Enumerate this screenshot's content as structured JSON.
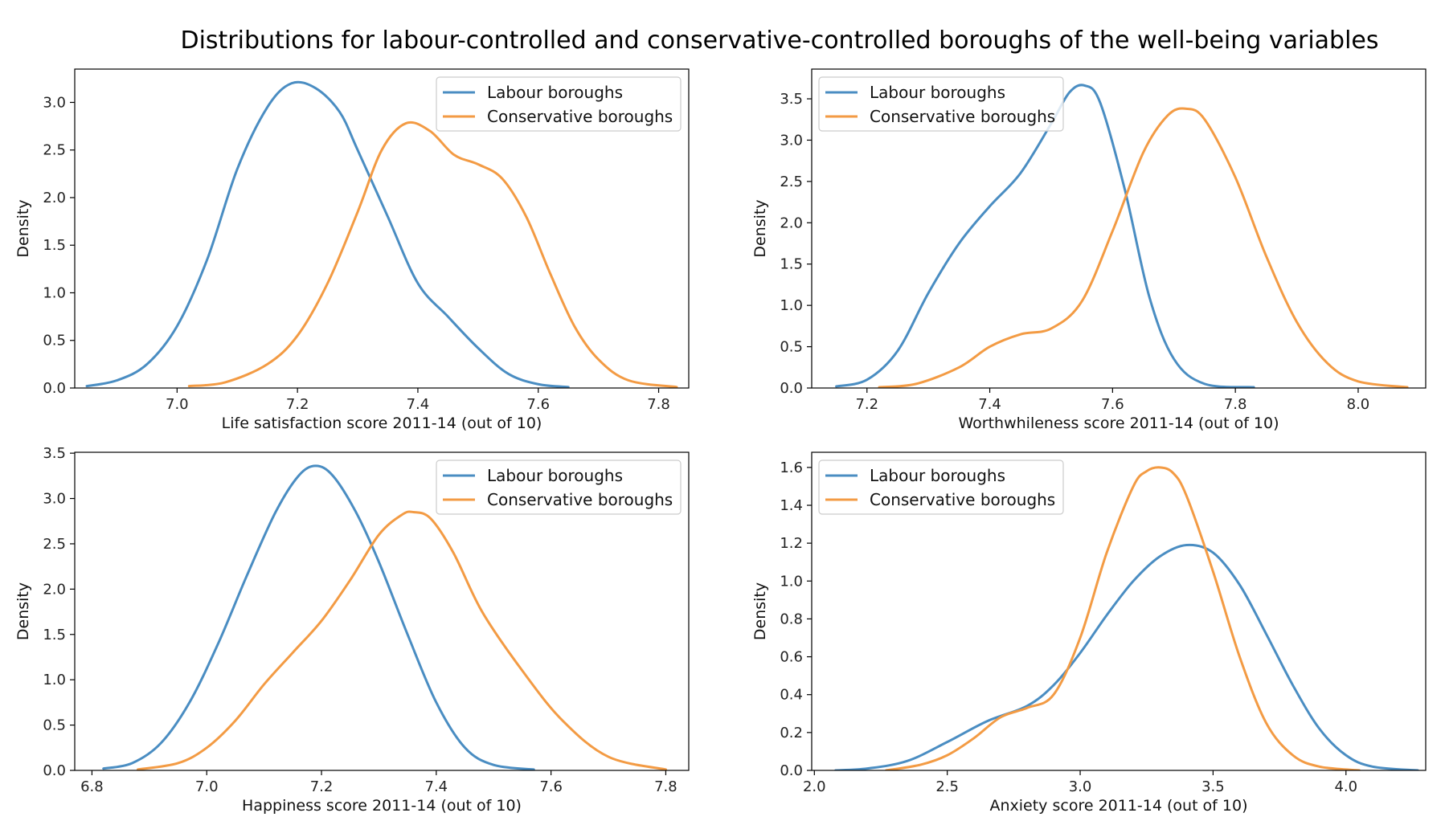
{
  "figure": {
    "title": "Distributions for labour-controlled and conservative-controlled boroughs of the well-being variables"
  },
  "colors": {
    "Labour boroughs": "#4a8dc2",
    "Conservative boroughs": "#f39b44"
  },
  "chart_data": [
    {
      "type": "line",
      "xlabel": "Life satisfaction score 2011-14 (out of 10)",
      "ylabel": "Density",
      "xlim": [
        6.83,
        7.85
      ],
      "ylim": [
        0,
        3.35
      ],
      "xticks": [
        7.0,
        7.2,
        7.4,
        7.6,
        7.8
      ],
      "xtick_labels": [
        "7.0",
        "7.2",
        "7.4",
        "7.6",
        "7.8"
      ],
      "yticks": [
        0,
        0.5,
        1.0,
        1.5,
        2.0,
        2.5,
        3.0
      ],
      "ytick_labels": [
        "0.0",
        "0.5",
        "1.0",
        "1.5",
        "2.0",
        "2.5",
        "3.0"
      ],
      "legend": "top-right",
      "grid": false,
      "series": [
        {
          "name": "Labour boroughs",
          "x": [
            6.85,
            6.9,
            6.95,
            7.0,
            7.05,
            7.1,
            7.15,
            7.19,
            7.23,
            7.27,
            7.3,
            7.35,
            7.4,
            7.45,
            7.5,
            7.55,
            7.6,
            7.65
          ],
          "y": [
            0.02,
            0.08,
            0.25,
            0.65,
            1.35,
            2.3,
            2.95,
            3.2,
            3.15,
            2.9,
            2.5,
            1.8,
            1.1,
            0.75,
            0.42,
            0.15,
            0.04,
            0.01
          ]
        },
        {
          "name": "Conservative boroughs",
          "x": [
            7.02,
            7.08,
            7.15,
            7.2,
            7.25,
            7.3,
            7.34,
            7.38,
            7.42,
            7.46,
            7.5,
            7.54,
            7.58,
            7.62,
            7.66,
            7.7,
            7.75,
            7.83
          ],
          "y": [
            0.02,
            0.06,
            0.25,
            0.55,
            1.1,
            1.85,
            2.5,
            2.78,
            2.7,
            2.45,
            2.35,
            2.2,
            1.8,
            1.2,
            0.65,
            0.3,
            0.08,
            0.01
          ]
        }
      ]
    },
    {
      "type": "line",
      "xlabel": "Worthwhileness score 2011-14 (out of 10)",
      "ylabel": "Density",
      "xlim": [
        7.11,
        8.11
      ],
      "ylim": [
        0,
        3.86
      ],
      "xticks": [
        7.2,
        7.4,
        7.6,
        7.8,
        8.0
      ],
      "xtick_labels": [
        "7.2",
        "7.4",
        "7.6",
        "7.8",
        "8.0"
      ],
      "yticks": [
        0,
        0.5,
        1.0,
        1.5,
        2.0,
        2.5,
        3.0,
        3.5
      ],
      "ytick_labels": [
        "0.0",
        "0.5",
        "1.0",
        "1.5",
        "2.0",
        "2.5",
        "3.0",
        "3.5"
      ],
      "legend": "top-left",
      "grid": false,
      "series": [
        {
          "name": "Labour boroughs",
          "x": [
            7.15,
            7.2,
            7.25,
            7.3,
            7.35,
            7.4,
            7.45,
            7.5,
            7.53,
            7.555,
            7.58,
            7.62,
            7.66,
            7.7,
            7.75,
            7.83
          ],
          "y": [
            0.02,
            0.1,
            0.45,
            1.15,
            1.75,
            2.2,
            2.6,
            3.2,
            3.58,
            3.66,
            3.45,
            2.4,
            1.1,
            0.35,
            0.05,
            0.01
          ]
        },
        {
          "name": "Conservative boroughs",
          "x": [
            7.22,
            7.28,
            7.35,
            7.4,
            7.45,
            7.5,
            7.55,
            7.6,
            7.65,
            7.69,
            7.72,
            7.75,
            7.8,
            7.85,
            7.9,
            7.95,
            8.0,
            8.08
          ],
          "y": [
            0.01,
            0.05,
            0.25,
            0.5,
            0.65,
            0.72,
            1.05,
            1.9,
            2.85,
            3.3,
            3.38,
            3.25,
            2.55,
            1.6,
            0.8,
            0.3,
            0.08,
            0.01
          ]
        }
      ]
    },
    {
      "type": "line",
      "xlabel": "Happiness score 2011-14 (out of 10)",
      "ylabel": "Density",
      "xlim": [
        6.77,
        7.84
      ],
      "ylim": [
        0,
        3.51
      ],
      "xticks": [
        6.8,
        7.0,
        7.2,
        7.4,
        7.6,
        7.8
      ],
      "xtick_labels": [
        "6.8",
        "7.0",
        "7.2",
        "7.4",
        "7.6",
        "7.8"
      ],
      "yticks": [
        0,
        0.5,
        1.0,
        1.5,
        2.0,
        2.5,
        3.0,
        3.5
      ],
      "ytick_labels": [
        "0.0",
        "0.5",
        "1.0",
        "1.5",
        "2.0",
        "2.5",
        "3.0",
        "3.5"
      ],
      "legend": "top-right",
      "grid": false,
      "series": [
        {
          "name": "Labour boroughs",
          "x": [
            6.82,
            6.87,
            6.92,
            6.97,
            7.02,
            7.07,
            7.12,
            7.16,
            7.19,
            7.22,
            7.26,
            7.3,
            7.35,
            7.4,
            7.45,
            7.5,
            7.57
          ],
          "y": [
            0.02,
            0.08,
            0.3,
            0.75,
            1.4,
            2.15,
            2.85,
            3.25,
            3.36,
            3.25,
            2.85,
            2.3,
            1.5,
            0.75,
            0.25,
            0.06,
            0.01
          ]
        },
        {
          "name": "Conservative boroughs",
          "x": [
            6.88,
            6.95,
            7.0,
            7.05,
            7.1,
            7.15,
            7.2,
            7.25,
            7.3,
            7.34,
            7.36,
            7.39,
            7.43,
            7.48,
            7.55,
            7.62,
            7.7,
            7.8
          ],
          "y": [
            0.01,
            0.08,
            0.25,
            0.55,
            0.95,
            1.3,
            1.65,
            2.1,
            2.6,
            2.82,
            2.85,
            2.78,
            2.4,
            1.75,
            1.1,
            0.55,
            0.15,
            0.01
          ]
        }
      ]
    },
    {
      "type": "line",
      "xlabel": "Anxiety score 2011-14 (out of 10)",
      "ylabel": "Density",
      "xlim": [
        1.99,
        4.3
      ],
      "ylim": [
        0,
        1.68
      ],
      "xticks": [
        2.0,
        2.5,
        3.0,
        3.5,
        4.0
      ],
      "xtick_labels": [
        "2.0",
        "2.5",
        "3.0",
        "3.5",
        "4.0"
      ],
      "yticks": [
        0,
        0.2,
        0.4,
        0.6,
        0.8,
        1.0,
        1.2,
        1.4,
        1.6
      ],
      "ytick_labels": [
        "0.0",
        "0.2",
        "0.4",
        "0.6",
        "0.8",
        "1.0",
        "1.2",
        "1.4",
        "1.6"
      ],
      "legend": "top-left",
      "grid": false,
      "series": [
        {
          "name": "Labour boroughs",
          "x": [
            2.08,
            2.2,
            2.35,
            2.5,
            2.65,
            2.8,
            2.9,
            3.0,
            3.1,
            3.2,
            3.3,
            3.4,
            3.5,
            3.6,
            3.7,
            3.8,
            3.9,
            4.0,
            4.1,
            4.27
          ],
          "y": [
            0.0,
            0.01,
            0.05,
            0.15,
            0.26,
            0.34,
            0.45,
            0.62,
            0.82,
            1.0,
            1.13,
            1.19,
            1.15,
            0.98,
            0.72,
            0.45,
            0.22,
            0.08,
            0.02,
            0.0
          ]
        },
        {
          "name": "Conservative boroughs",
          "x": [
            2.27,
            2.4,
            2.5,
            2.6,
            2.7,
            2.8,
            2.9,
            3.0,
            3.1,
            3.2,
            3.25,
            3.3,
            3.35,
            3.4,
            3.5,
            3.6,
            3.7,
            3.8,
            3.9,
            4.05
          ],
          "y": [
            0.0,
            0.03,
            0.08,
            0.17,
            0.28,
            0.33,
            0.4,
            0.7,
            1.15,
            1.5,
            1.58,
            1.6,
            1.57,
            1.45,
            1.05,
            0.6,
            0.25,
            0.08,
            0.02,
            0.0
          ]
        }
      ]
    }
  ]
}
